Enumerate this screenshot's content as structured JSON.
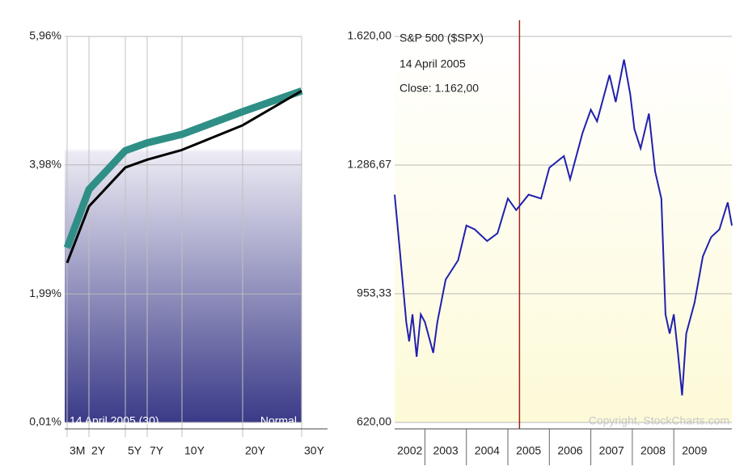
{
  "chart_data": [
    {
      "type": "line",
      "categories": [
        "3M",
        "2Y",
        "5Y",
        "7Y",
        "10Y",
        "20Y",
        "30Y"
      ],
      "series": [
        {
          "color": "#2f8f86",
          "values": [
            2.7,
            3.6,
            4.2,
            4.32,
            4.45,
            4.8,
            5.12
          ]
        },
        {
          "color": "#000000",
          "values": [
            2.47,
            3.34,
            3.94,
            4.06,
            4.21,
            4.59,
            5.12
          ]
        }
      ],
      "ylim": [
        0.01,
        5.96
      ],
      "yticks": [
        {
          "value": 5.96,
          "label": "5,96%"
        },
        {
          "value": 3.98,
          "label": "3,98%"
        },
        {
          "value": 1.99,
          "label": "1,99%"
        },
        {
          "value": 0.01,
          "label": "0,01%"
        }
      ],
      "grid": true,
      "annotations": [
        "14 April 2005 (30)",
        "Normal"
      ]
    },
    {
      "type": "line",
      "title": "S&P 500 ($SPX)",
      "subtitle": "14 April 2005",
      "annotation": "Close: 1.162,00",
      "credit": "Copyright, StockCharts.com",
      "x": [
        2002.27,
        2002.4,
        2002.55,
        2002.62,
        2002.7,
        2002.8,
        2002.9,
        2003.0,
        2003.2,
        2003.3,
        2003.5,
        2003.8,
        2004.0,
        2004.2,
        2004.5,
        2004.75,
        2005.0,
        2005.2,
        2005.5,
        2005.8,
        2006.0,
        2006.35,
        2006.5,
        2006.8,
        2007.0,
        2007.15,
        2007.45,
        2007.6,
        2007.8,
        2007.95,
        2008.05,
        2008.2,
        2008.4,
        2008.55,
        2008.7,
        2008.8,
        2008.9,
        2009.0,
        2009.1,
        2009.2,
        2009.3,
        2009.5,
        2009.7,
        2009.9,
        2010.1,
        2010.3,
        2010.4
      ],
      "series": [
        {
          "color": "#2020b0",
          "values": [
            1210,
            1060,
            880,
            830,
            900,
            790,
            900,
            880,
            800,
            880,
            990,
            1040,
            1130,
            1120,
            1090,
            1110,
            1200,
            1170,
            1210,
            1200,
            1280,
            1310,
            1250,
            1370,
            1430,
            1400,
            1520,
            1450,
            1560,
            1470,
            1380,
            1330,
            1420,
            1270,
            1200,
            900,
            850,
            900,
            800,
            690,
            850,
            930,
            1050,
            1100,
            1120,
            1190,
            1130
          ]
        }
      ],
      "marker": 2005.28,
      "marker_color": "#a02020",
      "xlim": [
        2002.27,
        2010.4
      ],
      "xticks": [
        2002,
        2003,
        2004,
        2005,
        2006,
        2007,
        2008,
        2009
      ],
      "ylim": [
        620,
        1620
      ],
      "yticks": [
        {
          "value": 1620,
          "label": "1.620,00"
        },
        {
          "value": 1286.67,
          "label": "1.286,67"
        },
        {
          "value": 953.33,
          "label": "953,33"
        },
        {
          "value": 620,
          "label": "620,00"
        }
      ],
      "grid": true
    }
  ]
}
